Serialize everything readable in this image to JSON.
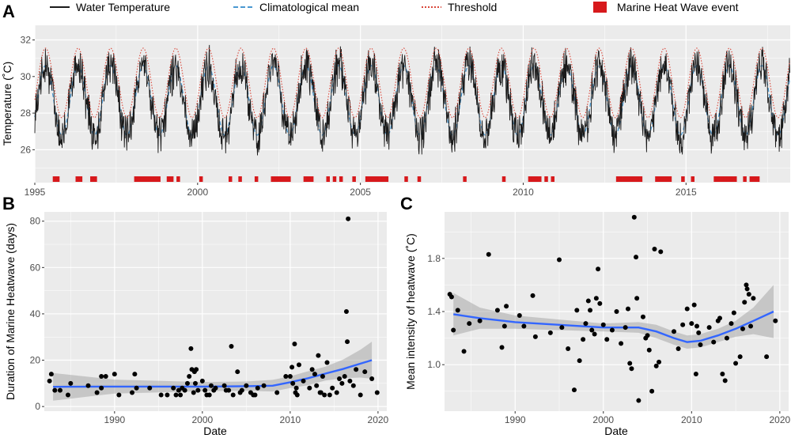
{
  "chart_data": [
    {
      "panel": "A",
      "type": "line",
      "title": "",
      "xlabel": "",
      "ylabel": "Temperature (˚C)",
      "xlim": [
        1995,
        2018.2
      ],
      "ylim": [
        24.2,
        32.8
      ],
      "xticks": [
        "1995",
        "2000",
        "2005",
        "2010",
        "2015"
      ],
      "yticks": [
        "26",
        "28",
        "30",
        "32"
      ],
      "legend": [
        {
          "name": "Water Temperature",
          "style": "solid-line",
          "color": "#1a1a1a"
        },
        {
          "name": "Climatological mean",
          "style": "dashed-line",
          "color": "#4a98d1"
        },
        {
          "name": "Threshold",
          "style": "dotted-line",
          "color": "#d9473a"
        },
        {
          "name": "Marine Heat Wave event",
          "style": "filled-square",
          "color": "#d7191c"
        }
      ],
      "seasonal_cycle": {
        "climatology_mean": 28.7,
        "climatology_amplitude": 1.9,
        "threshold_offset": 0.95,
        "peak_month_fraction": 0.33
      },
      "heatwave_event_years": [
        1995.6,
        1995.7,
        1996.3,
        1996.4,
        1996.75,
        1996.85,
        1998.1,
        1998.2,
        1998.3,
        1998.4,
        1998.5,
        1998.6,
        1998.7,
        1998.8,
        1999.1,
        1999.2,
        1999.4,
        2000.1,
        2001.0,
        2001.3,
        2001.8,
        2002.3,
        2002.4,
        2002.5,
        2002.6,
        2002.7,
        2002.8,
        2003.3,
        2003.4,
        2003.5,
        2004.0,
        2004.2,
        2004.4,
        2004.8,
        2005.2,
        2005.3,
        2005.4,
        2005.5,
        2005.6,
        2005.7,
        2005.8,
        2006.4,
        2006.8,
        2008.2,
        2009.4,
        2010.2,
        2010.3,
        2010.4,
        2010.5,
        2010.7,
        2010.9,
        2012.9,
        2013.0,
        2013.1,
        2013.2,
        2013.3,
        2013.4,
        2013.5,
        2013.6,
        2014.1,
        2014.2,
        2014.3,
        2014.4,
        2014.5,
        2014.9,
        2015.2,
        2015.9,
        2016.0,
        2016.1,
        2016.2,
        2016.3,
        2016.4,
        2016.5,
        2016.8,
        2017.0,
        2017.1,
        2017.2
      ]
    },
    {
      "panel": "B",
      "type": "scatter",
      "title": "",
      "xlabel": "Date",
      "ylabel": "Duration of Marine Heatwave (days)",
      "xlim": [
        1982,
        2021
      ],
      "ylim": [
        -2,
        84
      ],
      "xticks": [
        "1990",
        "2000",
        "2010",
        "2020"
      ],
      "yticks": [
        "0",
        "20",
        "40",
        "60",
        "80"
      ],
      "points": [
        [
          1982.6,
          11
        ],
        [
          1982.8,
          14
        ],
        [
          1983.2,
          7
        ],
        [
          1983.8,
          7
        ],
        [
          1984.7,
          5
        ],
        [
          1985.0,
          10
        ],
        [
          1987.0,
          9
        ],
        [
          1988.0,
          6
        ],
        [
          1988.5,
          8
        ],
        [
          1988.5,
          13
        ],
        [
          1989.0,
          13
        ],
        [
          1990.0,
          14
        ],
        [
          1990.5,
          5
        ],
        [
          1992.0,
          6
        ],
        [
          1992.3,
          14
        ],
        [
          1992.5,
          8
        ],
        [
          1994.0,
          8
        ],
        [
          1995.3,
          5
        ],
        [
          1996.0,
          5
        ],
        [
          1996.7,
          8
        ],
        [
          1997.0,
          5
        ],
        [
          1997.3,
          7
        ],
        [
          1997.5,
          5
        ],
        [
          1997.7,
          8
        ],
        [
          1998.0,
          7
        ],
        [
          1998.3,
          10
        ],
        [
          1998.5,
          13
        ],
        [
          1998.7,
          25
        ],
        [
          1998.8,
          16
        ],
        [
          1999.0,
          6
        ],
        [
          1999.1,
          15
        ],
        [
          1999.2,
          10
        ],
        [
          1999.3,
          16
        ],
        [
          1999.5,
          7
        ],
        [
          2000.0,
          11
        ],
        [
          2000.3,
          7
        ],
        [
          2000.5,
          5
        ],
        [
          2000.8,
          5
        ],
        [
          2001.0,
          9
        ],
        [
          2001.3,
          7
        ],
        [
          2001.5,
          8
        ],
        [
          2002.5,
          9
        ],
        [
          2002.7,
          7
        ],
        [
          2003.0,
          7
        ],
        [
          2003.3,
          26
        ],
        [
          2003.5,
          5
        ],
        [
          2004.0,
          15
        ],
        [
          2004.3,
          6
        ],
        [
          2004.5,
          7
        ],
        [
          2005.0,
          9
        ],
        [
          2005.5,
          6
        ],
        [
          2005.8,
          5
        ],
        [
          2006.0,
          5
        ],
        [
          2006.3,
          8
        ],
        [
          2007.0,
          9
        ],
        [
          2008.5,
          6
        ],
        [
          2009.5,
          13
        ],
        [
          2010.0,
          13
        ],
        [
          2010.2,
          17
        ],
        [
          2010.3,
          10
        ],
        [
          2010.5,
          27
        ],
        [
          2010.6,
          6
        ],
        [
          2010.7,
          8
        ],
        [
          2010.8,
          5
        ],
        [
          2011.0,
          18
        ],
        [
          2011.5,
          11
        ],
        [
          2012.2,
          8
        ],
        [
          2012.5,
          16
        ],
        [
          2012.8,
          14
        ],
        [
          2013.0,
          9
        ],
        [
          2013.2,
          22
        ],
        [
          2013.4,
          6
        ],
        [
          2013.5,
          6
        ],
        [
          2013.7,
          13
        ],
        [
          2013.9,
          5
        ],
        [
          2014.2,
          19
        ],
        [
          2014.5,
          5
        ],
        [
          2014.8,
          8
        ],
        [
          2015.3,
          6
        ],
        [
          2015.6,
          12
        ],
        [
          2015.9,
          10
        ],
        [
          2016.2,
          13
        ],
        [
          2016.4,
          41
        ],
        [
          2016.5,
          28
        ],
        [
          2016.6,
          81
        ],
        [
          2016.8,
          11
        ],
        [
          2017.2,
          9
        ],
        [
          2017.5,
          16
        ],
        [
          2018.0,
          5
        ],
        [
          2018.5,
          15
        ],
        [
          2019.3,
          12
        ],
        [
          2019.9,
          6
        ]
      ],
      "smooth": {
        "x": [
          1983,
          1990,
          2000,
          2005,
          2008,
          2010,
          2012,
          2014,
          2016,
          2018,
          2019.3
        ],
        "y": [
          8.5,
          8.6,
          8.6,
          8.8,
          9.0,
          10.5,
          12.2,
          14.2,
          16.2,
          18.5,
          20.0
        ],
        "se": [
          6,
          3,
          2,
          2,
          2.5,
          2.5,
          3,
          3,
          4,
          6,
          8
        ]
      }
    },
    {
      "panel": "C",
      "type": "scatter",
      "title": "",
      "xlabel": "Date",
      "ylabel": "Mean intensity of heatwave (˚C)",
      "xlim": [
        1982,
        2021
      ],
      "ylim": [
        0.65,
        2.15
      ],
      "xticks": [
        "1990",
        "2000",
        "2010",
        "2020"
      ],
      "yticks": [
        "1.0",
        "1.4",
        "1.8"
      ],
      "points": [
        [
          1982.6,
          1.53
        ],
        [
          1982.8,
          1.51
        ],
        [
          1983.0,
          1.26
        ],
        [
          1983.5,
          1.41
        ],
        [
          1984.2,
          1.1
        ],
        [
          1984.8,
          1.31
        ],
        [
          1986.0,
          1.33
        ],
        [
          1987.0,
          1.83
        ],
        [
          1988.0,
          1.41
        ],
        [
          1988.5,
          1.13
        ],
        [
          1988.8,
          1.29
        ],
        [
          1989.0,
          1.44
        ],
        [
          1990.5,
          1.37
        ],
        [
          1991.0,
          1.29
        ],
        [
          1992.0,
          1.52
        ],
        [
          1992.3,
          1.21
        ],
        [
          1994.0,
          1.24
        ],
        [
          1995.0,
          1.79
        ],
        [
          1995.3,
          1.28
        ],
        [
          1996.0,
          1.12
        ],
        [
          1996.7,
          0.81
        ],
        [
          1997.0,
          1.41
        ],
        [
          1997.3,
          1.03
        ],
        [
          1997.7,
          1.19
        ],
        [
          1998.0,
          1.31
        ],
        [
          1998.3,
          1.48
        ],
        [
          1998.5,
          1.41
        ],
        [
          1998.7,
          1.26
        ],
        [
          1999.0,
          1.23
        ],
        [
          1999.2,
          1.5
        ],
        [
          1999.4,
          1.72
        ],
        [
          1999.6,
          1.46
        ],
        [
          2000.0,
          1.3
        ],
        [
          2000.4,
          1.19
        ],
        [
          2001.0,
          1.26
        ],
        [
          2001.5,
          1.4
        ],
        [
          2002.0,
          1.16
        ],
        [
          2002.5,
          1.28
        ],
        [
          2002.8,
          1.42
        ],
        [
          2003.0,
          1.01
        ],
        [
          2003.2,
          0.97
        ],
        [
          2003.5,
          2.11
        ],
        [
          2003.7,
          1.81
        ],
        [
          2003.8,
          1.5
        ],
        [
          2004.0,
          0.73
        ],
        [
          2004.5,
          1.36
        ],
        [
          2004.8,
          1.2
        ],
        [
          2005.0,
          1.22
        ],
        [
          2005.2,
          1.11
        ],
        [
          2005.5,
          0.8
        ],
        [
          2005.8,
          1.87
        ],
        [
          2006.0,
          0.99
        ],
        [
          2006.3,
          1.02
        ],
        [
          2006.5,
          1.85
        ],
        [
          2008.0,
          1.25
        ],
        [
          2008.5,
          1.12
        ],
        [
          2009.0,
          1.3
        ],
        [
          2009.5,
          1.42
        ],
        [
          2010.0,
          1.31
        ],
        [
          2010.3,
          1.45
        ],
        [
          2010.5,
          0.93
        ],
        [
          2010.6,
          1.29
        ],
        [
          2010.8,
          1.24
        ],
        [
          2011.0,
          1.15
        ],
        [
          2012.0,
          1.28
        ],
        [
          2012.5,
          1.17
        ],
        [
          2013.0,
          1.33
        ],
        [
          2013.2,
          1.35
        ],
        [
          2013.5,
          0.93
        ],
        [
          2013.8,
          0.88
        ],
        [
          2014.0,
          1.2
        ],
        [
          2014.5,
          1.31
        ],
        [
          2014.8,
          1.39
        ],
        [
          2015.0,
          1.01
        ],
        [
          2015.5,
          1.06
        ],
        [
          2015.8,
          1.27
        ],
        [
          2016.0,
          1.47
        ],
        [
          2016.2,
          1.6
        ],
        [
          2016.3,
          1.57
        ],
        [
          2016.5,
          1.53
        ],
        [
          2016.7,
          1.29
        ],
        [
          2017.0,
          1.5
        ],
        [
          2018.5,
          1.06
        ],
        [
          2019.5,
          1.33
        ]
      ],
      "smooth": {
        "x": [
          1983,
          1986,
          1990,
          1995,
          2000,
          2004,
          2006,
          2008,
          2009.5,
          2011,
          2013,
          2015,
          2017,
          2019.3
        ],
        "y": [
          1.38,
          1.35,
          1.32,
          1.3,
          1.28,
          1.28,
          1.25,
          1.2,
          1.17,
          1.18,
          1.22,
          1.27,
          1.33,
          1.4
        ],
        "se": [
          0.16,
          0.08,
          0.05,
          0.04,
          0.03,
          0.04,
          0.05,
          0.05,
          0.05,
          0.05,
          0.05,
          0.06,
          0.1,
          0.2
        ]
      }
    }
  ]
}
